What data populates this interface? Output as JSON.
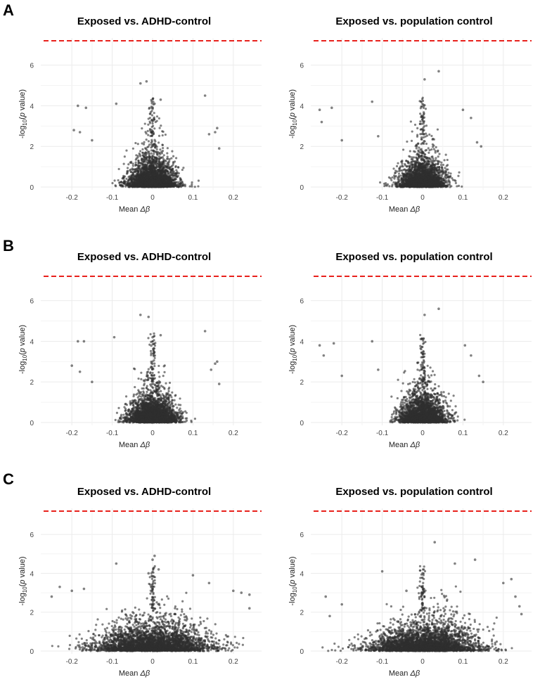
{
  "panel_labels": [
    "A",
    "B",
    "C"
  ],
  "colors": {
    "points": "#2f2f2f",
    "threshold": "#e8211c",
    "grid": "#ebebeb"
  },
  "chart_data": [
    {
      "type": "scatter",
      "panel": "A",
      "title": "Exposed vs. ADHD-control",
      "xlabel": "Mean Δβ",
      "ylabel": "-log10(p value)",
      "xlim": [
        -0.27,
        0.27
      ],
      "ylim": [
        0,
        7.2
      ],
      "xticks": [
        -0.2,
        -0.1,
        0,
        0.1,
        0.2
      ],
      "yticks": [
        0,
        2,
        4,
        6
      ],
      "xtick_labels": [
        "-0.2",
        "-0.1",
        "0",
        "0.1",
        "0.2"
      ],
      "ytick_labels": [
        "0",
        "2",
        "4",
        "6"
      ],
      "threshold_y": 7.3,
      "grid": true,
      "cloud": {
        "n": 2600,
        "sd_x": 0.032,
        "skew": 0,
        "seed": 11
      },
      "outliers": [
        [
          -0.195,
          2.8
        ],
        [
          -0.185,
          4.0
        ],
        [
          -0.165,
          3.9
        ],
        [
          -0.18,
          2.7
        ],
        [
          -0.15,
          2.3
        ],
        [
          -0.09,
          4.1
        ],
        [
          -0.03,
          5.1
        ],
        [
          -0.015,
          5.2
        ],
        [
          0.005,
          4.1
        ],
        [
          0.02,
          4.3
        ],
        [
          0.13,
          4.5
        ],
        [
          0.14,
          2.6
        ],
        [
          0.155,
          2.7
        ],
        [
          0.16,
          2.9
        ],
        [
          0.165,
          1.9
        ]
      ]
    },
    {
      "type": "scatter",
      "panel": "A",
      "title": "Exposed vs. population control",
      "xlabel": "Mean Δβ",
      "ylabel": "-log10(p value)",
      "xlim": [
        -0.27,
        0.27
      ],
      "ylim": [
        0,
        7.2
      ],
      "xticks": [
        -0.2,
        -0.1,
        0,
        0.1,
        0.2
      ],
      "yticks": [
        0,
        2,
        4,
        6
      ],
      "xtick_labels": [
        "-0.2",
        "-0.1",
        "0",
        "0.1",
        "0.2"
      ],
      "ytick_labels": [
        "0",
        "2",
        "4",
        "6"
      ],
      "threshold_y": 7.3,
      "grid": true,
      "cloud": {
        "n": 2400,
        "sd_x": 0.03,
        "skew": 0,
        "seed": 23
      },
      "outliers": [
        [
          -0.255,
          3.8
        ],
        [
          -0.25,
          3.2
        ],
        [
          -0.225,
          3.9
        ],
        [
          -0.2,
          2.3
        ],
        [
          -0.125,
          4.2
        ],
        [
          -0.11,
          2.5
        ],
        [
          0.005,
          5.3
        ],
        [
          0.04,
          5.7
        ],
        [
          0.1,
          3.8
        ],
        [
          0.12,
          3.4
        ],
        [
          0.135,
          2.2
        ],
        [
          0.145,
          2.0
        ]
      ]
    },
    {
      "type": "scatter",
      "panel": "B",
      "title": "Exposed vs. ADHD-control",
      "xlabel": "Mean Δβ",
      "ylabel": "-log10(p value)",
      "xlim": [
        -0.27,
        0.27
      ],
      "ylim": [
        0,
        7.2
      ],
      "xticks": [
        -0.2,
        -0.1,
        0,
        0.1,
        0.2
      ],
      "yticks": [
        0,
        2,
        4,
        6
      ],
      "xtick_labels": [
        "-0.2",
        "-0.1",
        "0",
        "0.1",
        "0.2"
      ],
      "ytick_labels": [
        "0",
        "2",
        "4",
        "6"
      ],
      "threshold_y": 7.3,
      "grid": true,
      "cloud": {
        "n": 2600,
        "sd_x": 0.032,
        "skew": 0,
        "seed": 37
      },
      "outliers": [
        [
          -0.2,
          2.8
        ],
        [
          -0.185,
          4.0
        ],
        [
          -0.17,
          4.0
        ],
        [
          -0.18,
          2.5
        ],
        [
          -0.15,
          2.0
        ],
        [
          -0.095,
          4.2
        ],
        [
          -0.03,
          5.3
        ],
        [
          -0.01,
          5.2
        ],
        [
          0.0,
          4.2
        ],
        [
          0.02,
          4.3
        ],
        [
          0.13,
          4.5
        ],
        [
          0.145,
          2.6
        ],
        [
          0.155,
          2.9
        ],
        [
          0.16,
          3.0
        ],
        [
          0.165,
          1.9
        ]
      ]
    },
    {
      "type": "scatter",
      "panel": "B",
      "title": "Exposed vs. population control",
      "xlabel": "Mean Δβ",
      "ylabel": "-log10(p value)",
      "xlim": [
        -0.27,
        0.27
      ],
      "ylim": [
        0,
        7.2
      ],
      "xticks": [
        -0.2,
        -0.1,
        0,
        0.1,
        0.2
      ],
      "yticks": [
        0,
        2,
        4,
        6
      ],
      "xtick_labels": [
        "-0.2",
        "-0.1",
        "0",
        "0.1",
        "0.2"
      ],
      "ytick_labels": [
        "0",
        "2",
        "4",
        "6"
      ],
      "threshold_y": 7.3,
      "grid": true,
      "cloud": {
        "n": 2400,
        "sd_x": 0.03,
        "skew": 0,
        "seed": 41
      },
      "outliers": [
        [
          -0.255,
          3.8
        ],
        [
          -0.245,
          3.3
        ],
        [
          -0.22,
          3.9
        ],
        [
          -0.2,
          2.3
        ],
        [
          -0.125,
          4.0
        ],
        [
          -0.11,
          2.6
        ],
        [
          0.005,
          5.3
        ],
        [
          0.04,
          5.6
        ],
        [
          0.105,
          3.8
        ],
        [
          0.12,
          3.3
        ],
        [
          0.14,
          2.3
        ],
        [
          0.15,
          2.0
        ]
      ]
    },
    {
      "type": "scatter",
      "panel": "C",
      "title": "Exposed vs. ADHD-control",
      "xlabel": "Mean Δβ",
      "ylabel": "-log10(p value)",
      "xlim": [
        -0.27,
        0.27
      ],
      "ylim": [
        0,
        7.2
      ],
      "xticks": [
        -0.2,
        -0.1,
        0,
        0.1,
        0.2
      ],
      "yticks": [
        0,
        2,
        4,
        6
      ],
      "xtick_labels": [
        "-0.2",
        "-0.1",
        "0",
        "0.1",
        "0.2"
      ],
      "ytick_labels": [
        "0",
        "2",
        "4",
        "6"
      ],
      "threshold_y": 7.3,
      "grid": true,
      "cloud": {
        "n": 3200,
        "sd_x": 0.075,
        "skew": 0.01,
        "seed": 53
      },
      "outliers": [
        [
          -0.25,
          2.8
        ],
        [
          -0.23,
          3.3
        ],
        [
          -0.2,
          3.1
        ],
        [
          -0.17,
          3.2
        ],
        [
          -0.09,
          4.5
        ],
        [
          -0.01,
          4.0
        ],
        [
          0.0,
          4.7
        ],
        [
          0.005,
          4.9
        ],
        [
          0.015,
          4.2
        ],
        [
          0.1,
          3.9
        ],
        [
          0.14,
          3.5
        ],
        [
          0.2,
          3.1
        ],
        [
          0.22,
          3.0
        ],
        [
          0.24,
          2.9
        ],
        [
          0.24,
          2.2
        ]
      ]
    },
    {
      "type": "scatter",
      "panel": "C",
      "title": "Exposed vs. population control",
      "xlabel": "Mean Δβ",
      "ylabel": "-log10(p value)",
      "xlim": [
        -0.27,
        0.27
      ],
      "ylim": [
        0,
        7.2
      ],
      "xticks": [
        -0.2,
        -0.1,
        0,
        0.1,
        0.2
      ],
      "yticks": [
        0,
        2,
        4,
        6
      ],
      "xtick_labels": [
        "-0.2",
        "-0.1",
        "0",
        "0.1",
        "0.2"
      ],
      "ytick_labels": [
        "0",
        "2",
        "4",
        "6"
      ],
      "threshold_y": 7.3,
      "grid": true,
      "cloud": {
        "n": 3200,
        "sd_x": 0.07,
        "skew": 0.035,
        "seed": 67
      },
      "outliers": [
        [
          -0.24,
          2.8
        ],
        [
          -0.23,
          1.8
        ],
        [
          -0.2,
          2.4
        ],
        [
          -0.1,
          4.1
        ],
        [
          -0.04,
          3.1
        ],
        [
          0.0,
          4.0
        ],
        [
          0.03,
          5.6
        ],
        [
          0.08,
          4.5
        ],
        [
          0.13,
          4.7
        ],
        [
          0.2,
          3.5
        ],
        [
          0.22,
          3.7
        ],
        [
          0.23,
          2.8
        ],
        [
          0.24,
          2.3
        ],
        [
          0.245,
          1.9
        ]
      ]
    }
  ]
}
